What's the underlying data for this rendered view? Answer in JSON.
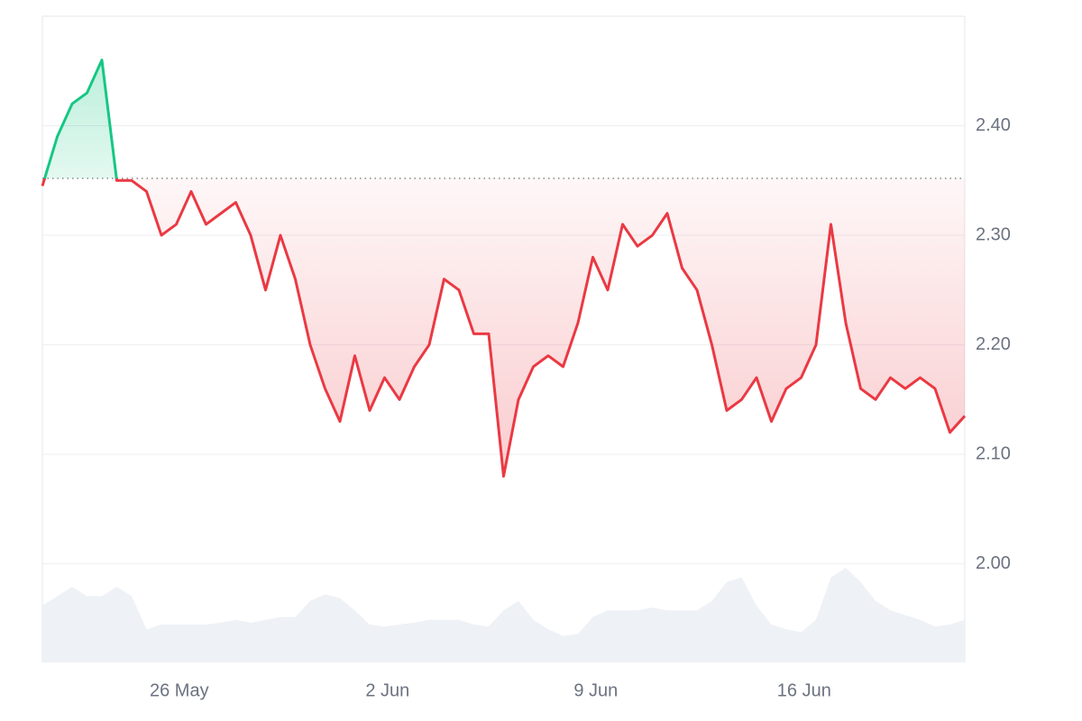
{
  "chart_data": {
    "type": "line",
    "x": [
      0,
      0.5,
      1,
      1.5,
      2,
      2.5,
      3,
      3.5,
      4,
      4.5,
      5,
      5.5,
      6,
      6.5,
      7,
      7.5,
      8,
      8.5,
      9,
      9.5,
      10,
      10.5,
      11,
      11.5,
      12,
      12.5,
      13,
      13.5,
      14,
      14.5,
      15,
      15.5,
      16,
      16.5,
      17,
      17.5,
      18,
      18.5,
      19,
      19.5,
      20,
      20.5,
      21,
      21.5,
      22,
      22.5,
      23,
      23.5,
      24,
      24.5,
      25,
      25.5,
      26,
      26.5,
      27,
      27.5,
      28,
      28.5,
      29,
      29.5,
      30,
      30.5,
      31
    ],
    "values": [
      2.345,
      2.39,
      2.42,
      2.43,
      2.46,
      2.35,
      2.35,
      2.34,
      2.3,
      2.31,
      2.34,
      2.31,
      2.32,
      2.33,
      2.3,
      2.25,
      2.3,
      2.26,
      2.2,
      2.16,
      2.13,
      2.19,
      2.14,
      2.17,
      2.15,
      2.18,
      2.2,
      2.26,
      2.25,
      2.21,
      2.21,
      2.08,
      2.15,
      2.18,
      2.19,
      2.18,
      2.22,
      2.28,
      2.25,
      2.31,
      2.29,
      2.3,
      2.32,
      2.27,
      2.25,
      2.2,
      2.14,
      2.15,
      2.17,
      2.13,
      2.16,
      2.17,
      2.2,
      2.31,
      2.22,
      2.16,
      2.15,
      2.17,
      2.16,
      2.17,
      2.16,
      2.12,
      2.135
    ],
    "baseline": 2.352,
    "color_up": "#16c784",
    "color_down": "#ea3943",
    "volume": {
      "color": "#eef1f5",
      "values": [
        60,
        70,
        80,
        70,
        70,
        80,
        70,
        35,
        40,
        40,
        40,
        40,
        42,
        45,
        42,
        45,
        48,
        48,
        65,
        72,
        68,
        55,
        40,
        38,
        40,
        42,
        45,
        45,
        45,
        40,
        38,
        55,
        65,
        45,
        35,
        28,
        30,
        48,
        55,
        55,
        55,
        58,
        55,
        55,
        55,
        65,
        85,
        90,
        60,
        40,
        35,
        32,
        45,
        90,
        100,
        85,
        65,
        55,
        50,
        45,
        38,
        40,
        45
      ]
    },
    "xlim": [
      0,
      31
    ],
    "xticks": [
      {
        "value": 4.6,
        "label": "26 May"
      },
      {
        "value": 11.6,
        "label": "2 Jun"
      },
      {
        "value": 18.6,
        "label": "9 Jun"
      },
      {
        "value": 25.6,
        "label": "16 Jun"
      }
    ],
    "ylim": [
      1.91,
      2.5
    ],
    "yticks": [
      {
        "value": 2.0,
        "label": "2.00"
      },
      {
        "value": 2.1,
        "label": "2.10"
      },
      {
        "value": 2.2,
        "label": "2.20"
      },
      {
        "value": 2.3,
        "label": "2.30"
      },
      {
        "value": 2.4,
        "label": "2.40"
      }
    ],
    "grid": true
  }
}
